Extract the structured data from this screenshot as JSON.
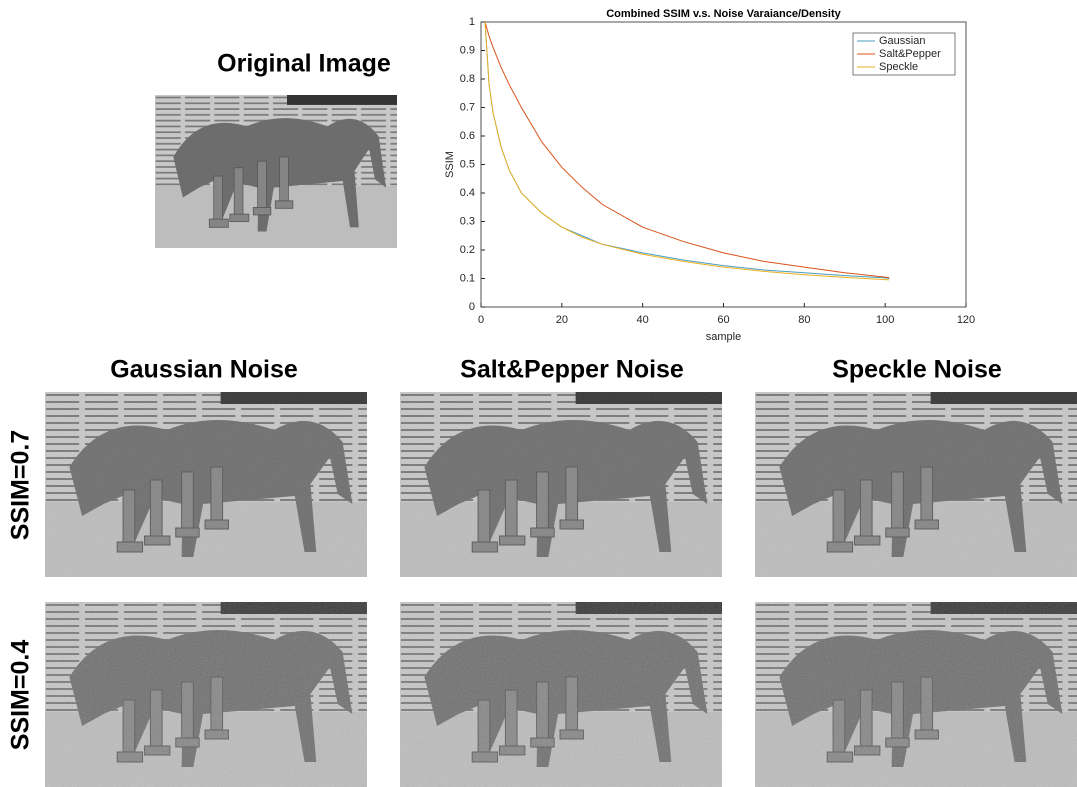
{
  "figure": {
    "original_title": "Original Image",
    "column_titles": [
      "Gaussian Noise",
      "Salt&Pepper Noise",
      "Speckle Noise"
    ],
    "row_labels": [
      "SSIM=0.7",
      "SSIM=0.4"
    ]
  },
  "chart_data": {
    "type": "line",
    "title": "Combined SSIM v.s. Noise Varaiance/Density",
    "x_label": "sample",
    "y_label": "SSIM",
    "x": [
      1,
      2,
      3,
      5,
      7,
      10,
      15,
      20,
      25,
      30,
      40,
      50,
      60,
      70,
      80,
      90,
      100,
      101
    ],
    "series": [
      {
        "name": "Gaussian",
        "color": "#4a9ec0",
        "values": [
          1.0,
          0.78,
          0.68,
          0.56,
          0.48,
          0.4,
          0.33,
          0.28,
          0.25,
          0.22,
          0.19,
          0.165,
          0.145,
          0.13,
          0.12,
          0.11,
          0.102,
          0.1
        ]
      },
      {
        "name": "Salt&Pepper",
        "color": "#d95319",
        "values": [
          1.0,
          0.95,
          0.91,
          0.84,
          0.78,
          0.7,
          0.58,
          0.49,
          0.42,
          0.36,
          0.28,
          0.23,
          0.19,
          0.16,
          0.14,
          0.12,
          0.105,
          0.103
        ]
      },
      {
        "name": "Speckle",
        "color": "#edb120",
        "values": [
          1.0,
          0.78,
          0.68,
          0.56,
          0.48,
          0.4,
          0.33,
          0.28,
          0.245,
          0.22,
          0.185,
          0.16,
          0.14,
          0.125,
          0.113,
          0.104,
          0.096,
          0.095
        ]
      }
    ],
    "xlim": [
      0,
      120
    ],
    "xticks": [
      0,
      20,
      40,
      60,
      80,
      100,
      120
    ],
    "ylim": [
      0,
      1
    ],
    "yticks": [
      0,
      0.1,
      0.2,
      0.3,
      0.4,
      0.5,
      0.6,
      0.7,
      0.8,
      0.9,
      1
    ],
    "legend": "upper right",
    "grid": false
  }
}
